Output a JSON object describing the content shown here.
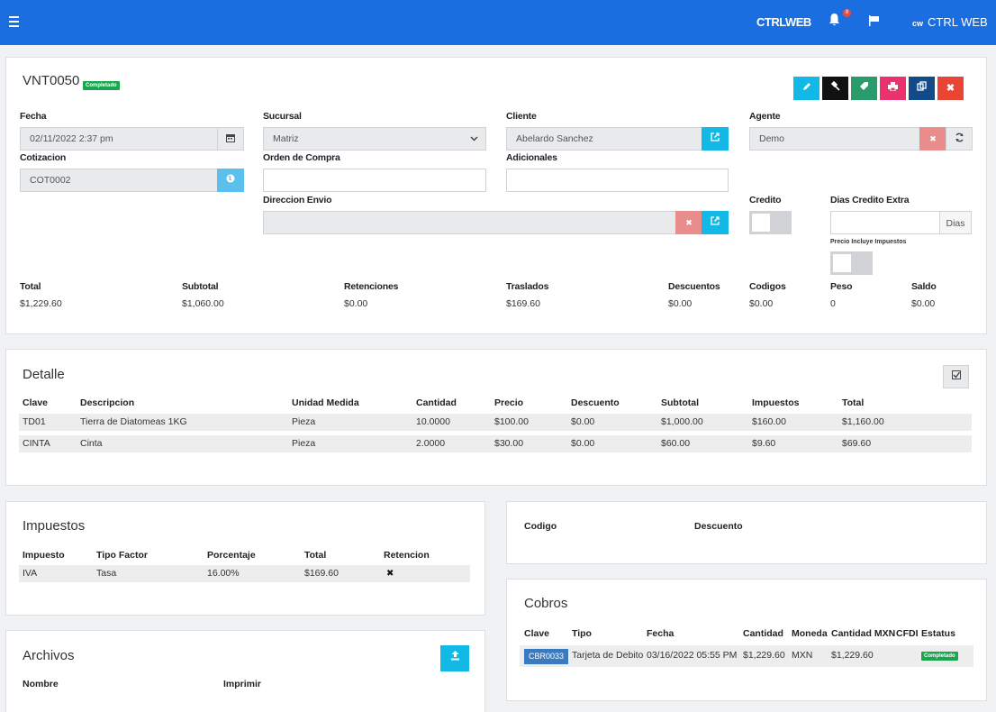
{
  "topbar": {
    "brand": "CTRLWEB",
    "bell_count": "8",
    "user_logo": "cw",
    "user_name": "CTRL WEB"
  },
  "header": {
    "title": "VNT0050",
    "status": "Completado"
  },
  "colors": {
    "edit": "#12b8e6",
    "black": "#111111",
    "green": "#2a9b6b",
    "pink": "#e8336e",
    "navy": "#124a8a",
    "red": "#e84535"
  },
  "form": {
    "fecha": {
      "label": "Fecha",
      "value": "02/11/2022 2:37 pm"
    },
    "sucursal": {
      "label": "Sucursal",
      "value": "Matriz"
    },
    "cliente": {
      "label": "Cliente",
      "value": "Abelardo Sanchez"
    },
    "agente": {
      "label": "Agente",
      "value": "Demo"
    },
    "cotizacion": {
      "label": "Cotizacion",
      "value": "COT0002"
    },
    "orden": {
      "label": "Orden de Compra",
      "value": ""
    },
    "adicionales": {
      "label": "Adicionales",
      "value": ""
    },
    "direccion": {
      "label": "Direccion Envio",
      "value": ""
    },
    "credito": {
      "label": "Credito"
    },
    "dias": {
      "label": "Dias Credito Extra",
      "addon": "Dias",
      "value": ""
    },
    "precio_impuestos": {
      "label": "Precio Incluye Impuestos"
    }
  },
  "totals": [
    {
      "label": "Total",
      "value": "$1,229.60"
    },
    {
      "label": "Subtotal",
      "value": "$1,060.00"
    },
    {
      "label": "Retenciones",
      "value": "$0.00"
    },
    {
      "label": "Traslados",
      "value": "$169.60"
    },
    {
      "label": "Descuentos",
      "value": "$0.00"
    },
    {
      "label": "Codigos",
      "value": "$0.00"
    },
    {
      "label": "Peso",
      "value": "0"
    },
    {
      "label": "Saldo",
      "value": "$0.00"
    }
  ],
  "detalle": {
    "title": "Detalle",
    "headers": [
      "Clave",
      "Descripcion",
      "Unidad Medida",
      "Cantidad",
      "Precio",
      "Descuento",
      "Subtotal",
      "Impuestos",
      "Total"
    ],
    "rows": [
      [
        "TD01",
        "Tierra de Diatomeas 1KG",
        "Pieza",
        "10.0000",
        "$100.00",
        "$0.00",
        "$1,000.00",
        "$160.00",
        "$1,160.00"
      ],
      [
        "CINTA",
        "Cinta",
        "Pieza",
        "2.0000",
        "$30.00",
        "$0.00",
        "$60.00",
        "$9.60",
        "$69.60"
      ]
    ]
  },
  "impuestos": {
    "title": "Impuestos",
    "headers": [
      "Impuesto",
      "Tipo Factor",
      "Porcentaje",
      "Total",
      "Retencion"
    ],
    "rows": [
      [
        "IVA",
        "Tasa",
        "16.00%",
        "$169.60",
        "✖"
      ]
    ]
  },
  "codigos": {
    "headers": [
      "Codigo",
      "Descuento"
    ]
  },
  "cobros": {
    "title": "Cobros",
    "headers": [
      "Clave",
      "Tipo",
      "Fecha",
      "Cantidad",
      "Moneda",
      "Cantidad MXN",
      "CFDI",
      "Estatus"
    ],
    "rows": [
      [
        "CBR0033",
        "Tarjeta de Debito",
        "03/16/2022 05:55 PM",
        "$1,229.60",
        "MXN",
        "$1,229.60",
        "",
        "Completado"
      ]
    ]
  },
  "archivos": {
    "title": "Archivos",
    "headers": [
      "Nombre",
      "Imprimir"
    ]
  }
}
